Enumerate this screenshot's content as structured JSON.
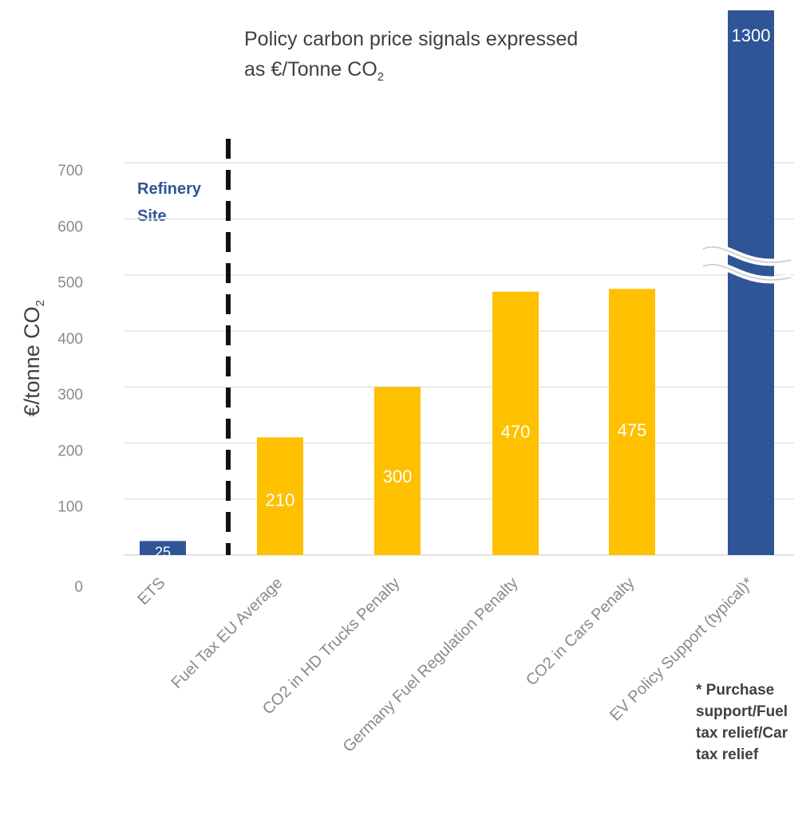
{
  "title_line1": "Policy carbon price signals expressed",
  "title_line2_prefix": "as €/Tonne CO",
  "title_line2_sub": "2",
  "ylabel_prefix": "€/tonne CO",
  "ylabel_sub": "2",
  "refinery_label": "Refinery Site",
  "footnote": "* Purchase support/Fuel tax relief/Car tax relief",
  "colors": {
    "blue": "#2F5597",
    "yellow": "#FFC000",
    "grid": "#e3e3e3",
    "axis_text": "#8a8a8a"
  },
  "chart_data": {
    "type": "bar",
    "categories": [
      "ETS",
      "Fuel Tax EU Average",
      "CO2 in HD Trucks Penalty",
      "Germany Fuel Regulation Penalty",
      "CO2 in Cars Penalty",
      "EV Policy Support (typical)*"
    ],
    "values": [
      25,
      210,
      300,
      470,
      475,
      1300
    ],
    "value_labels": [
      "25",
      "210",
      "300",
      "470",
      "475",
      "1300"
    ],
    "bar_colors": [
      "blue",
      "yellow",
      "yellow",
      "yellow",
      "yellow",
      "blue"
    ],
    "axis_break_on": "EV Policy Support (typical)*",
    "ylim": [
      0,
      700
    ],
    "yticks": [
      0,
      100,
      200,
      300,
      400,
      500,
      600,
      700
    ],
    "ylabel": "€/tonne CO2",
    "grid": true,
    "legend": "none"
  }
}
